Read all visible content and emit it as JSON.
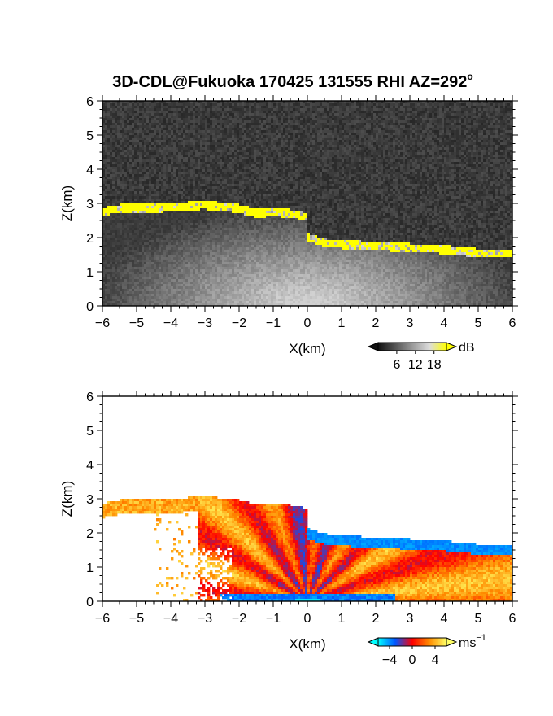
{
  "title": "3D-CDL@Fukuoka 170425 131555 RHI AZ=292",
  "title_degree": "o",
  "chart_data": [
    {
      "type": "heatmap",
      "name": "signal-to-noise",
      "xlabel": "X(km)",
      "ylabel": "Z(km)",
      "xlim": [
        -6,
        6
      ],
      "ylim": [
        0,
        6
      ],
      "xticks": [
        "−6",
        "−5",
        "−4",
        "−3",
        "−2",
        "−1",
        "0",
        "1",
        "2",
        "3",
        "4",
        "5",
        "6"
      ],
      "yticks": [
        "0",
        "1",
        "2",
        "3",
        "4",
        "5",
        "6"
      ],
      "colorbar": {
        "unit": "dB",
        "ticks": [
          "6",
          "12",
          "18"
        ],
        "tick_values": [
          6,
          12,
          18
        ],
        "range": [
          0,
          22
        ],
        "colors": [
          "#111111",
          "#555555",
          "#9a9a9a",
          "#dcdcdc",
          "#ffff00"
        ]
      },
      "background_dB": 2,
      "cloud_base_layer": [
        [
          -6,
          2.75
        ],
        [
          -5.5,
          2.85
        ],
        [
          -4.5,
          2.85
        ],
        [
          -3,
          2.95
        ],
        [
          -2,
          2.85
        ],
        [
          -1.5,
          2.7
        ],
        [
          -1,
          2.75
        ],
        [
          -0.5,
          2.7
        ],
        [
          0,
          2.6
        ],
        [
          0.5,
          2.65
        ],
        [
          1,
          2.6
        ]
      ],
      "lower_layer": [
        [
          0,
          2.0
        ],
        [
          0.5,
          1.85
        ],
        [
          1,
          1.8
        ],
        [
          2,
          1.75
        ],
        [
          3,
          1.7
        ],
        [
          4,
          1.65
        ],
        [
          5,
          1.55
        ],
        [
          6,
          1.55
        ]
      ]
    },
    {
      "type": "heatmap",
      "name": "doppler-velocity",
      "xlabel": "X(km)",
      "ylabel": "Z(km)",
      "xlim": [
        -6,
        6
      ],
      "ylim": [
        0,
        6
      ],
      "xticks": [
        "−6",
        "−5",
        "−4",
        "−3",
        "−2",
        "−1",
        "0",
        "1",
        "2",
        "3",
        "4",
        "5",
        "6"
      ],
      "yticks": [
        "0",
        "1",
        "2",
        "3",
        "4",
        "5",
        "6"
      ],
      "colorbar": {
        "unit": "ms",
        "unit_exponent": "−1",
        "ticks": [
          "−4",
          "0",
          "4"
        ],
        "tick_values": [
          -4,
          0,
          4
        ],
        "range": [
          -6,
          6
        ],
        "colors": [
          "#00ffff",
          "#0055ff",
          "#ff0000",
          "#ff8c00",
          "#ffff66"
        ]
      }
    }
  ]
}
